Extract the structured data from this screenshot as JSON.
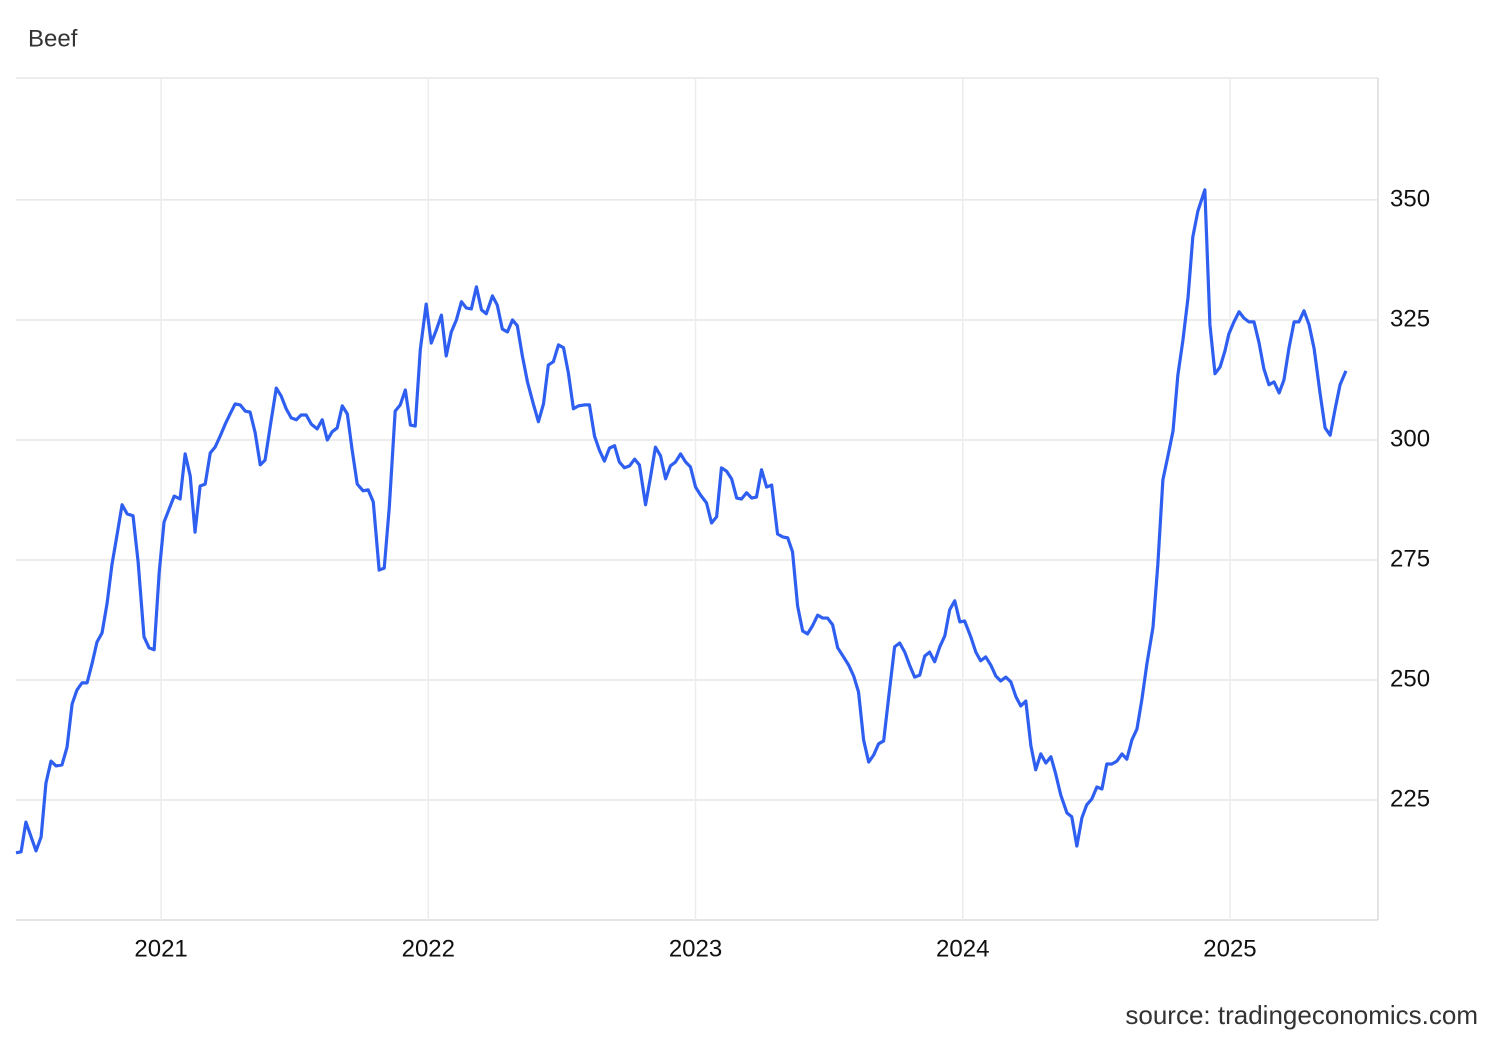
{
  "chart_data": {
    "type": "line",
    "title": "Beef",
    "source": "source: tradingeconomics.com",
    "xlim": [
      2020.457,
      2025.554
    ],
    "xticks": [
      2021,
      2022,
      2023,
      2024,
      2025
    ],
    "ylim": [
      200,
      375.4
    ],
    "yticks": [
      225,
      250,
      275,
      300,
      325,
      350
    ],
    "grid": true,
    "x": [
      2020.457,
      2020.476,
      2020.494,
      2020.532,
      2020.551,
      2020.569,
      2020.588,
      2020.607,
      2020.629,
      2020.648,
      2020.667,
      2020.685,
      2020.704,
      2020.723,
      2020.742,
      2020.76,
      2020.779,
      2020.798,
      2020.816,
      2020.835,
      2020.854,
      2020.873,
      2020.895,
      2020.914,
      2020.936,
      2020.955,
      2020.974,
      2020.993,
      2021.011,
      2021.03,
      2021.049,
      2021.071,
      2021.09,
      2021.109,
      2021.127,
      2021.146,
      2021.165,
      2021.184,
      2021.202,
      2021.221,
      2021.24,
      2021.258,
      2021.277,
      2021.296,
      2021.315,
      2021.333,
      2021.352,
      2021.371,
      2021.389,
      2021.408,
      2021.431,
      2021.449,
      2021.468,
      2021.487,
      2021.506,
      2021.524,
      2021.543,
      2021.562,
      2021.584,
      2021.603,
      2021.622,
      2021.64,
      2021.659,
      2021.678,
      2021.697,
      2021.715,
      2021.734,
      2021.756,
      2021.775,
      2021.794,
      2021.816,
      2021.835,
      2021.854,
      2021.876,
      2021.895,
      2021.914,
      2021.933,
      2021.951,
      2021.97,
      2021.992,
      2022.011,
      2022.03,
      2022.049,
      2022.067,
      2022.086,
      2022.105,
      2022.124,
      2022.142,
      2022.161,
      2022.18,
      2022.199,
      2022.217,
      2022.24,
      2022.258,
      2022.277,
      2022.296,
      2022.315,
      2022.333,
      2022.352,
      2022.371,
      2022.393,
      2022.412,
      2022.431,
      2022.449,
      2022.468,
      2022.487,
      2022.506,
      2022.524,
      2022.543,
      2022.562,
      2022.584,
      2022.603,
      2022.622,
      2022.64,
      2022.659,
      2022.678,
      2022.697,
      2022.715,
      2022.734,
      2022.753,
      2022.772,
      2022.79,
      2022.813,
      2022.831,
      2022.85,
      2022.869,
      2022.888,
      2022.906,
      2022.925,
      2022.944,
      2022.963,
      2022.981,
      2023.0,
      2023.019,
      2023.041,
      2023.06,
      2023.079,
      2023.097,
      2023.116,
      2023.135,
      2023.154,
      2023.172,
      2023.191,
      2023.21,
      2023.228,
      2023.247,
      2023.266,
      2023.285,
      2023.307,
      2023.326,
      2023.345,
      2023.363,
      2023.382,
      2023.401,
      2023.419,
      2023.438,
      2023.457,
      2023.476,
      2023.494,
      2023.513,
      2023.532,
      2023.554,
      2023.573,
      2023.592,
      2023.61,
      2023.629,
      2023.648,
      2023.667,
      2023.685,
      2023.704,
      2023.723,
      2023.745,
      2023.764,
      2023.783,
      2023.801,
      2023.82,
      2023.839,
      2023.858,
      2023.876,
      2023.895,
      2023.914,
      2023.933,
      2023.951,
      2023.97,
      2023.989,
      2024.007,
      2024.03,
      2024.049,
      2024.067,
      2024.086,
      2024.105,
      2024.124,
      2024.142,
      2024.161,
      2024.18,
      2024.199,
      2024.217,
      2024.236,
      2024.255,
      2024.273,
      2024.292,
      2024.311,
      2024.33,
      2024.348,
      2024.367,
      2024.39,
      2024.408,
      2024.427,
      2024.446,
      2024.464,
      2024.483,
      2024.502,
      2024.521,
      2024.539,
      2024.558,
      2024.577,
      2024.596,
      2024.614,
      2024.633,
      2024.652,
      2024.67,
      2024.689,
      2024.712,
      2024.73,
      2024.749,
      2024.768,
      2024.787,
      2024.805,
      2024.824,
      2024.843,
      2024.861,
      2024.88,
      2024.906,
      2024.925,
      2024.944,
      2024.963,
      2024.981,
      2024.996,
      2025.015,
      2025.034,
      2025.052,
      2025.071,
      2025.09,
      2025.109,
      2025.127,
      2025.146,
      2025.165,
      2025.184,
      2025.202,
      2025.221,
      2025.24,
      2025.258,
      2025.277,
      2025.296,
      2025.315,
      2025.337,
      2025.356,
      2025.375,
      2025.393,
      2025.412,
      2025.434
    ],
    "series": [
      {
        "name": "Beef",
        "color": "#2f5ff0",
        "values": [
          214.0,
          214.2,
          220.4,
          214.4,
          217.3,
          228.5,
          233.1,
          232.1,
          232.3,
          236.0,
          245.0,
          247.9,
          249.4,
          249.4,
          253.5,
          257.9,
          259.8,
          266.0,
          274.0,
          280.2,
          286.5,
          284.6,
          284.2,
          274.6,
          259.0,
          256.7,
          256.3,
          272.5,
          282.9,
          285.6,
          288.3,
          287.7,
          297.1,
          292.5,
          280.8,
          290.4,
          290.8,
          297.3,
          298.5,
          300.8,
          303.3,
          305.4,
          307.5,
          307.3,
          306.0,
          305.8,
          301.5,
          294.8,
          295.8,
          302.7,
          310.8,
          309.2,
          306.5,
          304.6,
          304.2,
          305.2,
          305.2,
          303.3,
          302.3,
          304.2,
          300.0,
          301.7,
          302.5,
          307.1,
          305.4,
          297.9,
          290.8,
          289.4,
          289.6,
          287.1,
          272.9,
          273.3,
          286.0,
          306.0,
          307.3,
          310.4,
          303.1,
          302.9,
          318.8,
          328.3,
          320.2,
          322.9,
          326.0,
          317.5,
          322.5,
          325.0,
          328.8,
          327.5,
          327.3,
          331.9,
          327.1,
          326.3,
          330.0,
          328.1,
          323.1,
          322.5,
          325.0,
          323.8,
          317.5,
          312.1,
          307.5,
          303.8,
          307.5,
          315.6,
          316.3,
          319.8,
          319.2,
          314.0,
          306.5,
          307.1,
          307.3,
          307.3,
          300.8,
          297.9,
          295.6,
          298.3,
          298.8,
          295.4,
          294.2,
          294.6,
          296.0,
          294.8,
          286.5,
          292.1,
          298.5,
          296.7,
          291.9,
          294.6,
          295.4,
          297.1,
          295.4,
          294.4,
          290.2,
          288.5,
          286.9,
          282.7,
          284.0,
          294.2,
          293.5,
          291.9,
          287.9,
          287.7,
          289.0,
          287.9,
          288.1,
          293.8,
          290.2,
          290.6,
          280.4,
          279.8,
          279.6,
          276.7,
          265.4,
          260.2,
          259.6,
          261.3,
          263.5,
          262.9,
          262.9,
          261.5,
          256.7,
          254.8,
          253.1,
          250.8,
          247.5,
          237.5,
          232.9,
          234.4,
          236.7,
          237.3,
          246.5,
          256.9,
          257.7,
          255.8,
          253.1,
          250.6,
          251.0,
          255.0,
          255.8,
          253.8,
          256.9,
          259.2,
          264.6,
          266.5,
          262.1,
          262.3,
          259.0,
          255.8,
          254.0,
          254.8,
          253.1,
          250.8,
          249.8,
          250.6,
          249.6,
          246.5,
          244.6,
          245.6,
          236.3,
          231.3,
          234.6,
          232.7,
          234.0,
          230.4,
          226.0,
          222.3,
          221.5,
          215.4,
          221.3,
          224.0,
          225.2,
          227.7,
          227.3,
          232.5,
          232.5,
          233.1,
          234.6,
          233.5,
          237.5,
          239.8,
          245.8,
          253.3,
          261.0,
          274.0,
          291.7,
          296.7,
          301.9,
          313.5,
          320.8,
          329.6,
          342.3,
          347.7,
          352.1,
          324.0,
          313.8,
          315.2,
          318.5,
          322.1,
          324.6,
          326.7,
          325.4,
          324.6,
          324.6,
          320.2,
          314.8,
          311.5,
          312.1,
          309.8,
          312.5,
          319.2,
          324.6,
          324.6,
          326.9,
          324.0,
          319.0,
          309.8,
          302.5,
          301.0,
          306.3,
          311.5,
          314.4
        ]
      }
    ]
  }
}
